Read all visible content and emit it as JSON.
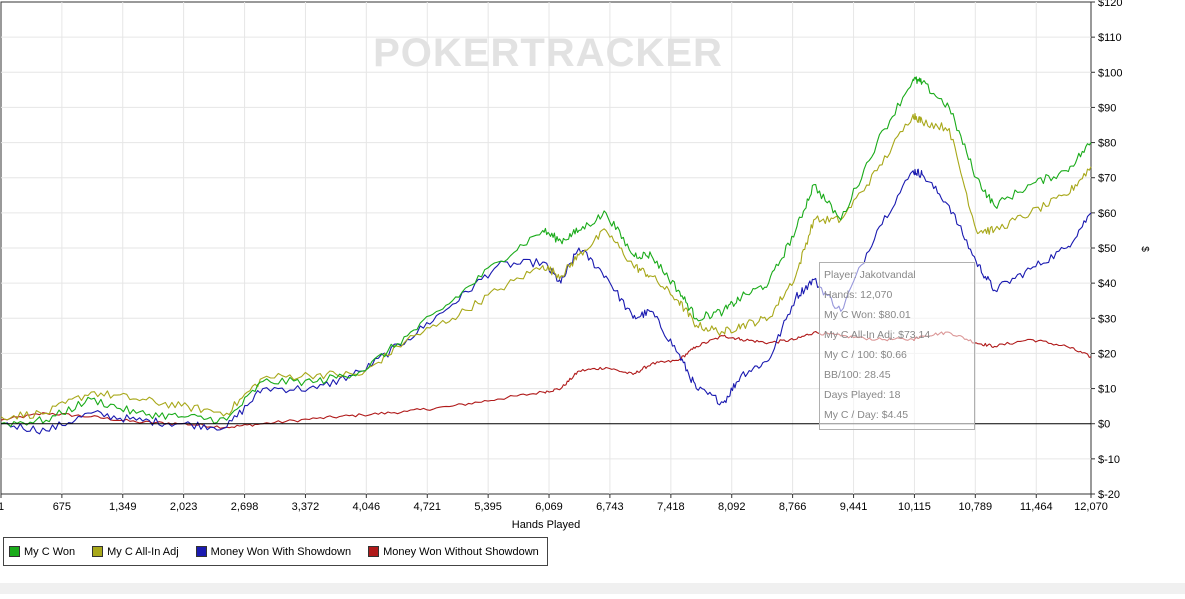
{
  "watermark": "POKERTRACKER",
  "colors": {
    "my_c_won": "#1aab1a",
    "my_c_allin_adj": "#a8a81a",
    "showdown": "#1a1ab0",
    "non_showdown": "#b01a1a",
    "grid": "#e6e6e6",
    "zero_line": "#000000"
  },
  "chart_data": {
    "type": "line",
    "xlabel": "Hands Played",
    "ylabel": "$",
    "xlim": [
      1,
      12070
    ],
    "ylim": [
      -20,
      120
    ],
    "x_ticks": [
      1,
      675,
      1349,
      2023,
      2698,
      3372,
      4046,
      4721,
      5395,
      6069,
      6743,
      7418,
      8092,
      8766,
      9441,
      10115,
      10789,
      11464,
      12070
    ],
    "x_tick_labels": [
      "1",
      "675",
      "1,349",
      "2,023",
      "2,698",
      "3,372",
      "4,046",
      "4,721",
      "5,395",
      "6,069",
      "6,743",
      "7,418",
      "8,092",
      "8,766",
      "9,441",
      "10,115",
      "10,789",
      "11,464",
      "12,070"
    ],
    "y_ticks": [
      -20,
      -10,
      0,
      10,
      20,
      30,
      40,
      50,
      60,
      70,
      80,
      90,
      100,
      110,
      120
    ],
    "y_tick_labels": [
      "$-20",
      "$-10",
      "$0",
      "$10",
      "$20",
      "$30",
      "$40",
      "$50",
      "$60",
      "$70",
      "$80",
      "$90",
      "$100",
      "$110",
      "$120"
    ],
    "grid": true,
    "legend_position": "bottom-left",
    "x": [
      1,
      500,
      1000,
      1500,
      2000,
      2500,
      2900,
      3500,
      4000,
      4500,
      5000,
      5500,
      6000,
      6200,
      6400,
      6700,
      7000,
      7200,
      7500,
      7700,
      8000,
      8200,
      8500,
      8800,
      9000,
      9300,
      9700,
      10100,
      10200,
      10500,
      10800,
      11000,
      11400,
      11800,
      12070
    ],
    "series": [
      {
        "name": "My C Won",
        "key": "my_c_won",
        "values": [
          0,
          1,
          7,
          3,
          2,
          1,
          12,
          12,
          15,
          25,
          35,
          46,
          55,
          52,
          55,
          60,
          48,
          48,
          38,
          30,
          32,
          36,
          40,
          55,
          68,
          58,
          80,
          98,
          97,
          90,
          70,
          62,
          68,
          72,
          80.01
        ]
      },
      {
        "name": "My C All-In Adj",
        "key": "my_c_allin_adj",
        "values": [
          2,
          3,
          9,
          7,
          5,
          3,
          13,
          14,
          14,
          24,
          30,
          38,
          45,
          42,
          48,
          55,
          45,
          42,
          35,
          28,
          26,
          28,
          30,
          42,
          58,
          58,
          72,
          88,
          86,
          84,
          55,
          55,
          60,
          65,
          73.14
        ]
      },
      {
        "name": "Money Won With Showdown",
        "key": "showdown",
        "values": [
          0,
          -2,
          3,
          1,
          0,
          -1,
          10,
          10,
          15,
          24,
          34,
          45,
          46,
          40,
          50,
          42,
          30,
          32,
          20,
          10,
          6,
          14,
          18,
          36,
          41,
          32,
          55,
          72,
          71,
          62,
          46,
          38,
          44,
          50,
          60
        ]
      },
      {
        "name": "Money Won Without Showdown",
        "key": "non_showdown",
        "values": [
          1,
          3,
          2,
          0.5,
          0,
          -1,
          0,
          1.5,
          2.5,
          3.5,
          5,
          7,
          9,
          10,
          15,
          16,
          14,
          17,
          18,
          22,
          25,
          24,
          23,
          24,
          26,
          25,
          24,
          24,
          25,
          26,
          23,
          22,
          24,
          22,
          19
        ]
      }
    ]
  },
  "tooltip": {
    "player": "Player: Jakotvandal",
    "hands": "Hands: 12,070",
    "my_c_won": "My C Won: $80.01",
    "my_c_allin_adj": "My C All-In Adj: $73.14",
    "my_c_per_100": "My C / 100: $0.66",
    "bb_per_100": "BB/100: 28.45",
    "days_played": "Days Played: 18",
    "my_c_per_day": "My C / Day: $4.45"
  },
  "legend": [
    {
      "label": "My C Won",
      "key": "my_c_won"
    },
    {
      "label": "My C All-In Adj",
      "key": "my_c_allin_adj"
    },
    {
      "label": "Money Won With Showdown",
      "key": "showdown"
    },
    {
      "label": "Money Won Without Showdown",
      "key": "non_showdown"
    }
  ]
}
